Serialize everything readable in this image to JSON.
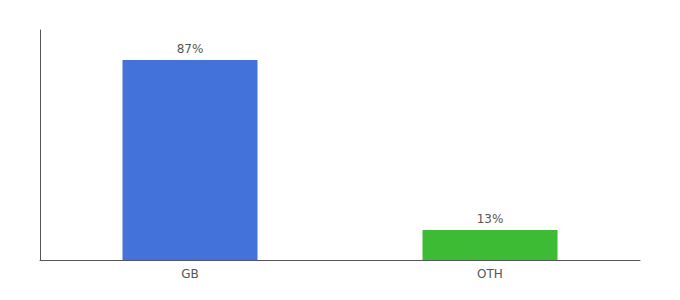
{
  "chart_data": {
    "type": "bar",
    "categories": [
      "GB",
      "OTH"
    ],
    "values": [
      87,
      13
    ],
    "value_labels": [
      "87%",
      "13%"
    ],
    "colors": [
      "#4472db",
      "#3dbb35"
    ],
    "ylim": [
      0,
      100
    ],
    "grid": false,
    "data_labels": true,
    "tick_labels": "x"
  }
}
